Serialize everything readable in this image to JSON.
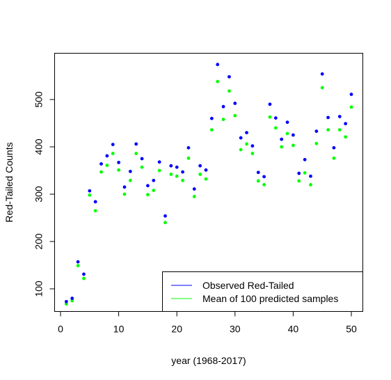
{
  "chart_data": {
    "type": "scatter",
    "title": "",
    "xlabel": "year (1968-2017)",
    "ylabel": "Red-Tailed Counts",
    "xlim": [
      0,
      52
    ],
    "ylim": [
      55,
      580
    ],
    "xticks": [
      0,
      10,
      20,
      30,
      40,
      50
    ],
    "yticks": [
      100,
      200,
      300,
      400,
      500
    ],
    "grid": false,
    "legend_position": "bottom-right",
    "x": [
      1,
      2,
      3,
      4,
      5,
      6,
      7,
      8,
      9,
      10,
      11,
      12,
      13,
      14,
      15,
      16,
      17,
      18,
      19,
      20,
      21,
      22,
      23,
      24,
      25,
      26,
      27,
      28,
      29,
      30,
      31,
      32,
      33,
      34,
      35,
      36,
      37,
      38,
      39,
      40,
      41,
      42,
      43,
      44,
      45,
      46,
      47,
      48,
      49,
      50
    ],
    "series": [
      {
        "name": "Observed Red-Tailed",
        "color": "#0000ff",
        "values": [
          73,
          80,
          157,
          131,
          307,
          284,
          364,
          381,
          405,
          367,
          315,
          348,
          406,
          375,
          318,
          329,
          368,
          254,
          360,
          357,
          347,
          398,
          311,
          360,
          351,
          460,
          574,
          485,
          548,
          492,
          419,
          430,
          402,
          346,
          337,
          490,
          461,
          416,
          452,
          425,
          344,
          373,
          338,
          433,
          554,
          462,
          398,
          464,
          449,
          511
        ]
      },
      {
        "name": "Mean of 100 predicted samples",
        "color": "#00ff00",
        "values": [
          68,
          75,
          149,
          122,
          298,
          265,
          347,
          361,
          386,
          351,
          300,
          329,
          386,
          357,
          299,
          308,
          350,
          240,
          342,
          338,
          329,
          376,
          295,
          342,
          332,
          436,
          538,
          458,
          518,
          466,
          394,
          406,
          386,
          328,
          320,
          463,
          440,
          400,
          428,
          403,
          328,
          345,
          320,
          407,
          525,
          436,
          376,
          436,
          421,
          484
        ]
      }
    ]
  }
}
